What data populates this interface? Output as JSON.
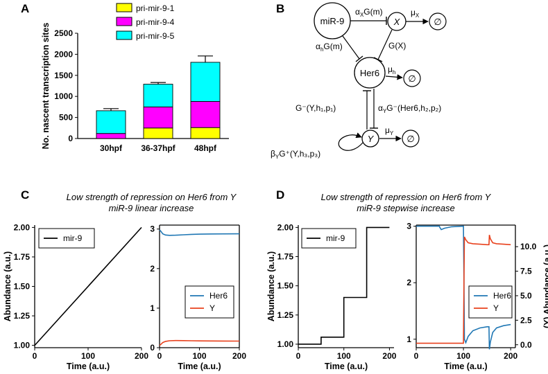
{
  "panels": {
    "a": "A",
    "b": "B",
    "c": "C",
    "d": "D"
  },
  "chart_data": [
    {
      "type": "bar",
      "stacked": true,
      "categories": [
        "30hpf",
        "36-37hpf",
        "48hpf"
      ],
      "series": [
        {
          "name": "pri-mir-9-1",
          "color": "#ffff00",
          "values": [
            0,
            250,
            260
          ],
          "errors": [
            0,
            40,
            130
          ]
        },
        {
          "name": "pri-mir-9-4",
          "color": "#ff00ff",
          "values": [
            120,
            500,
            620
          ],
          "errors": [
            60,
            40,
            310
          ]
        },
        {
          "name": "pri-mir-9-5",
          "color": "#00ffff",
          "values": [
            540,
            540,
            930
          ],
          "errors": [
            50,
            40,
            150
          ]
        }
      ],
      "ylabel": "No. nascent transcription sites",
      "ylim": [
        0,
        2500
      ],
      "yticks": [
        "0",
        "500",
        "1000",
        "1500",
        "2000",
        "2500"
      ],
      "legend": "top-left"
    },
    {
      "type": "line",
      "series": [
        {
          "name": "mir-9",
          "color": "#000000",
          "x": [
            0,
            200
          ],
          "y": [
            1.0,
            2.0
          ]
        }
      ],
      "xlabel": "Time (a.u.)",
      "ylabel": "Abundance (a.u.)",
      "xlim": [
        0,
        200
      ],
      "ylim": [
        0.98,
        2.02
      ],
      "xticks": [
        "0",
        "100",
        "200"
      ],
      "yticks": [
        "1.00",
        "1.25",
        "1.50",
        "1.75",
        "2.00"
      ],
      "legend": "top-left"
    },
    {
      "type": "line",
      "series": [
        {
          "name": "Her6",
          "color": "#1f77b4",
          "x": [
            0,
            3,
            8,
            15,
            25,
            40,
            60,
            80,
            100,
            130,
            160,
            200
          ],
          "y": [
            2.98,
            2.95,
            2.88,
            2.85,
            2.84,
            2.845,
            2.855,
            2.865,
            2.87,
            2.875,
            2.878,
            2.88
          ]
        },
        {
          "name": "Y",
          "color": "#e8401c",
          "x": [
            0,
            3,
            8,
            15,
            25,
            40,
            60,
            80,
            100,
            130,
            160,
            200
          ],
          "y": [
            0.06,
            0.08,
            0.13,
            0.16,
            0.175,
            0.18,
            0.178,
            0.175,
            0.172,
            0.17,
            0.168,
            0.166
          ]
        }
      ],
      "xlabel": "Time (a.u.)",
      "xlim": [
        0,
        200
      ],
      "ylim": [
        0,
        3.1
      ],
      "xticks": [
        "0",
        "100",
        "200"
      ],
      "yticks": [
        "0",
        "1",
        "2",
        "3"
      ],
      "legend": "right"
    },
    {
      "type": "line",
      "series": [
        {
          "name": "mir-9",
          "color": "#000000",
          "x": [
            0,
            50,
            50,
            100,
            100,
            150,
            150,
            200
          ],
          "y": [
            1.0,
            1.0,
            1.06,
            1.06,
            1.4,
            1.4,
            2.0,
            2.0
          ]
        }
      ],
      "xlabel": "Time (a.u.)",
      "ylabel": "Abundance (a.u.)",
      "xlim": [
        0,
        210
      ],
      "ylim": [
        0.97,
        2.02
      ],
      "xticks": [
        "0",
        "100",
        "200"
      ],
      "yticks": [
        "1.00",
        "1.25",
        "1.50",
        "1.75",
        "2.00"
      ],
      "legend": "top-left"
    },
    {
      "type": "line",
      "series": [
        {
          "name": "Her6",
          "color": "#1f77b4",
          "axis": "left",
          "x": [
            0,
            49,
            50,
            53,
            60,
            75,
            99,
            100,
            101,
            102,
            105,
            110,
            120,
            135,
            150,
            154,
            155,
            157,
            162,
            170,
            185,
            200
          ],
          "y": [
            3.0,
            3.0,
            2.98,
            2.94,
            2.965,
            2.99,
            3.0,
            3.0,
            2.1,
            1.0,
            0.94,
            1.05,
            1.15,
            1.2,
            1.22,
            1.22,
            0.82,
            0.95,
            1.12,
            1.2,
            1.24,
            1.26
          ]
        },
        {
          "name": "Y",
          "color": "#e8401c",
          "axis": "right",
          "x": [
            0,
            49,
            50,
            53,
            60,
            75,
            99,
            100,
            101,
            102,
            105,
            110,
            120,
            135,
            150,
            154,
            155,
            157,
            162,
            170,
            185,
            200
          ],
          "y": [
            0.15,
            0.15,
            0.15,
            0.15,
            0.15,
            0.15,
            0.15,
            0.15,
            6.0,
            11.0,
            10.7,
            10.4,
            10.3,
            10.25,
            10.2,
            10.2,
            11.2,
            10.8,
            10.4,
            10.3,
            10.25,
            10.2
          ]
        }
      ],
      "xlabel": "Time (a.u.)",
      "ylabel_right": "(Y) Abundance (a.u.)",
      "xlim": [
        0,
        210
      ],
      "ylim": [
        0.85,
        3.02
      ],
      "ylim_right": [
        -0.3,
        12.2
      ],
      "xticks": [
        "0",
        "100",
        "200"
      ],
      "yticks": [
        "1",
        "2",
        "3"
      ],
      "yticks_right": [
        "0.0",
        "2.5",
        "5.0",
        "7.5",
        "10.0"
      ],
      "legend": "right"
    }
  ],
  "diagram": {
    "nodes": {
      "mir9": "miR-9",
      "x": "X",
      "her6": "Her6",
      "y": "Y",
      "empty": "∅"
    },
    "rates": {
      "ax": "α",
      "ax_sub": "X",
      "ax_rest": "G(m)",
      "mux": "μ",
      "mux_sub": "X",
      "ah": "α",
      "ah_sub": "h",
      "ah_rest": "G(m)",
      "gx": "G(X)",
      "muh": "μ",
      "muh_sub": "h",
      "muy": "μ",
      "muy_sub": "Y"
    },
    "labels": {
      "gminus_y": "G⁻(Y,h₁,p₁)",
      "ay_her6": "α",
      "ay_her6_sub": "Y",
      "ay_her6_rest": "G⁻(Her6,h₂,p₂)",
      "by_y": "β",
      "by_y_sub": "Y",
      "by_y_rest": "G⁺(Y,h₃,p₃)"
    }
  },
  "titles": {
    "c_line1": "Low strength of repression on Her6 from Y",
    "c_line2": "miR-9 linear increase",
    "d_line1": "Low strength of repression on Her6 from Y",
    "d_line2": "miR-9 stepwise increase"
  }
}
